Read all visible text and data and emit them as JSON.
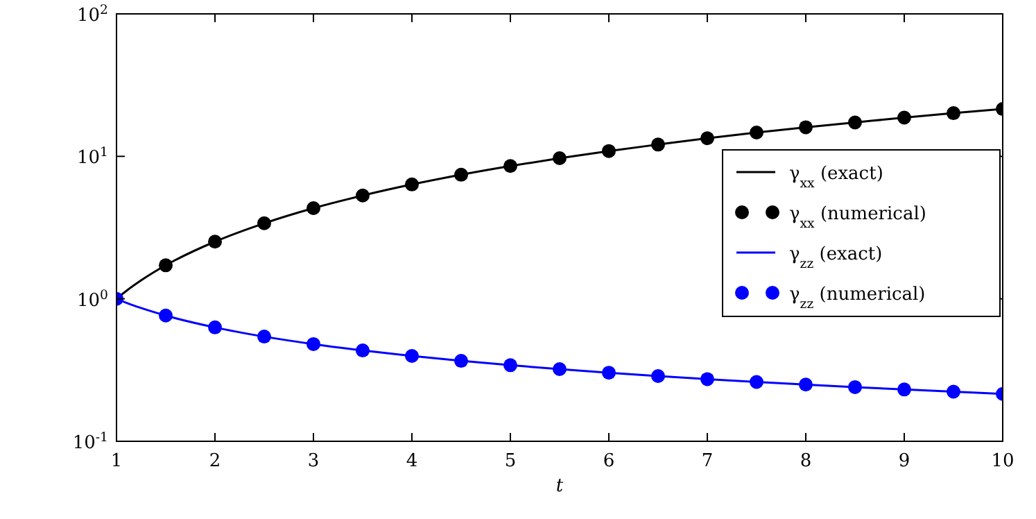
{
  "chart_data": {
    "type": "line",
    "xlabel": "t",
    "log": "y",
    "legend": "right",
    "xlim": [
      1,
      10
    ],
    "ylim": [
      0.1,
      100
    ],
    "xticks": [
      1,
      2,
      3,
      4,
      5,
      6,
      7,
      8,
      9,
      10
    ],
    "yticks": [
      {
        "value": 0.1,
        "label": "10$^{-1}$"
      },
      {
        "value": 1,
        "label": "10$^{0}$"
      },
      {
        "value": 10,
        "label": "10$^{1}$"
      },
      {
        "value": 100,
        "label": "10$^{2}$"
      }
    ],
    "series": [
      {
        "name": "γ$_{xx}$ (exact)",
        "type": "line",
        "color": "#000000",
        "marker": "none",
        "x": [
          1,
          1.1,
          1.25,
          1.5,
          2,
          2.5,
          3,
          3.5,
          4,
          4.5,
          5,
          5.5,
          6,
          6.5,
          7,
          7.5,
          8,
          8.5,
          9,
          9.5,
          10
        ],
        "values": [
          1,
          1.136,
          1.347,
          1.72,
          2.52,
          3.39,
          4.33,
          5.31,
          6.35,
          7.43,
          8.55,
          9.71,
          10.9,
          12.1,
          13.4,
          14.7,
          16.0,
          17.3,
          18.7,
          20.1,
          21.5
        ]
      },
      {
        "name": "γ$_{xx}$ (numerical)",
        "type": "scatter",
        "color": "#000000",
        "marker": "circle",
        "x": [
          1.5,
          2,
          2.5,
          3,
          3.5,
          4,
          4.5,
          5,
          5.5,
          6,
          6.5,
          7,
          7.5,
          8,
          8.5,
          9,
          9.5,
          10
        ],
        "values": [
          1.72,
          2.52,
          3.39,
          4.33,
          5.31,
          6.35,
          7.43,
          8.55,
          9.71,
          10.9,
          12.1,
          13.4,
          14.7,
          16.0,
          17.3,
          18.7,
          20.1,
          21.5
        ]
      },
      {
        "name": "γ$_{zz}$ (exact)",
        "type": "line",
        "color": "#0000ff",
        "marker": "none",
        "x": [
          1,
          1.1,
          1.25,
          1.5,
          2,
          2.5,
          3,
          3.5,
          4,
          4.5,
          5,
          5.5,
          6,
          6.5,
          7,
          7.5,
          8,
          8.5,
          9,
          9.5,
          10
        ],
        "values": [
          1,
          0.938,
          0.862,
          0.763,
          0.63,
          0.543,
          0.481,
          0.434,
          0.397,
          0.367,
          0.342,
          0.321,
          0.303,
          0.287,
          0.273,
          0.261,
          0.25,
          0.24,
          0.231,
          0.223,
          0.215
        ]
      },
      {
        "name": "γ$_{zz}$ (numerical)",
        "type": "scatter",
        "color": "#0000ff",
        "marker": "circle",
        "x": [
          1,
          1.5,
          2,
          2.5,
          3,
          3.5,
          4,
          4.5,
          5,
          5.5,
          6,
          6.5,
          7,
          7.5,
          8,
          8.5,
          9,
          9.5,
          10
        ],
        "values": [
          1,
          0.763,
          0.63,
          0.543,
          0.481,
          0.434,
          0.397,
          0.367,
          0.342,
          0.321,
          0.303,
          0.287,
          0.273,
          0.261,
          0.25,
          0.24,
          0.231,
          0.223,
          0.215
        ]
      }
    ]
  }
}
